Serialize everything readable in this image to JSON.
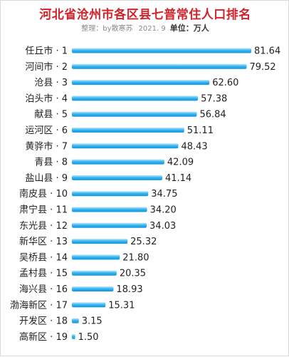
{
  "chart_data": {
    "type": "bar",
    "orientation": "horizontal",
    "title": "河北省沧州市各区县七普常住人口排名",
    "subtitle_credit": "整理：by散寒苏",
    "subtitle_date": "2021. 9",
    "subtitle_unit": "单位：万人",
    "categories": [
      "任丘市 · 1",
      "河间市 · 2",
      "沧县 · 3",
      "泊头市 · 4",
      "献县 · 5",
      "运河区 · 6",
      "黄骅市 · 7",
      "青县 · 8",
      "盐山县 · 9",
      "南皮县 · 10",
      "肃宁县 · 11",
      "东光县 · 12",
      "新华区 · 13",
      "吴桥县 · 14",
      "孟村县 · 15",
      "海兴县 · 16",
      "渤海新区 · 17",
      "开发区 · 18",
      "高新区 · 19"
    ],
    "values": [
      81.64,
      79.52,
      62.6,
      57.38,
      56.84,
      51.11,
      48.43,
      42.09,
      41.14,
      34.75,
      34.2,
      34.03,
      25.32,
      21.8,
      20.35,
      18.93,
      15.31,
      3.15,
      1.5
    ],
    "value_labels": [
      "81.64",
      "79.52",
      "62.60",
      "57.38",
      "56.84",
      "51.11",
      "48.43",
      "42.09",
      "41.14",
      "34.75",
      "34.20",
      "34.03",
      "25.32",
      "21.80",
      "20.35",
      "18.93",
      "15.31",
      "3.15",
      "1.50"
    ],
    "xlim": [
      0,
      81.64
    ],
    "grid": false,
    "legend": "none",
    "colors": {
      "title": "#d2232a",
      "bar_light": "#bfe7fb",
      "bar_mid": "#39b6f0",
      "bar_dark": "#0f95dd"
    }
  }
}
